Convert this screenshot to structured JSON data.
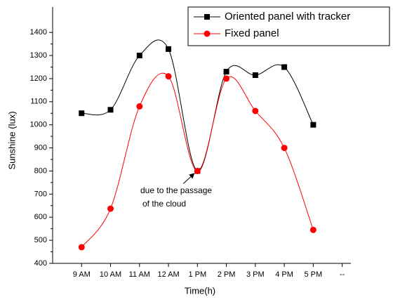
{
  "chart_data": {
    "type": "line",
    "xlabel": "Time(h)",
    "ylabel": "Sunshine (lux)",
    "categories": [
      "9 AM",
      "10 AM",
      "11 AM",
      "12 AM",
      "1 PM",
      "2 PM",
      "3 PM",
      "4 PM",
      "5 PM",
      "--"
    ],
    "series": [
      {
        "name": "Oriented panel with tracker",
        "color": "#000000",
        "marker": "square",
        "values": [
          1050,
          1065,
          1300,
          1328,
          800,
          1230,
          1215,
          1250,
          1000,
          null
        ]
      },
      {
        "name": "Fixed panel",
        "color": "#ff0000",
        "marker": "circle",
        "values": [
          470,
          637,
          1080,
          1210,
          800,
          1200,
          1060,
          900,
          545,
          null
        ]
      }
    ],
    "ylim": [
      400,
      1510
    ],
    "yticks": [
      400,
      500,
      600,
      700,
      800,
      900,
      1000,
      1100,
      1200,
      1300,
      1400
    ],
    "annotation": [
      "due to the passage",
      "of the cloud"
    ],
    "legend": "upper right",
    "smooth": true
  }
}
